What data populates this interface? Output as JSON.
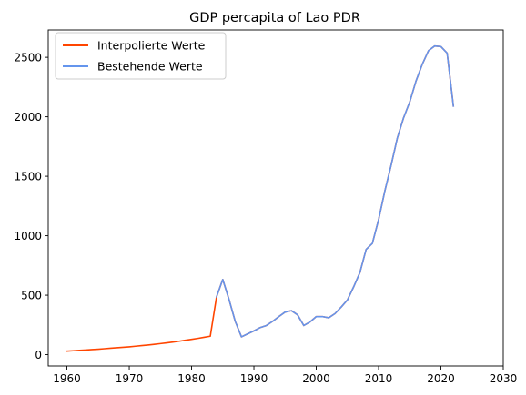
{
  "chart_data": {
    "type": "line",
    "title": "GDP percapita of Lao PDR",
    "xlabel": "",
    "ylabel": "",
    "xlim": [
      1957,
      2030
    ],
    "ylim": [
      -95,
      2730
    ],
    "xticks": [
      1960,
      1970,
      1980,
      1990,
      2000,
      2010,
      2020,
      2030
    ],
    "yticks": [
      0,
      500,
      1000,
      1500,
      2000,
      2500
    ],
    "grid": false,
    "legend_position": "top-left",
    "series": [
      {
        "name": "Interpolierte Werte",
        "color": "#ff4500",
        "x": [
          1960,
          1961,
          1962,
          1963,
          1964,
          1965,
          1966,
          1967,
          1968,
          1969,
          1970,
          1971,
          1972,
          1973,
          1974,
          1975,
          1976,
          1977,
          1978,
          1979,
          1980,
          1981,
          1982,
          1983,
          1984,
          1985,
          1986,
          1987,
          1988,
          1989,
          1990,
          1991,
          1992,
          1993,
          1994,
          1995,
          1996,
          1997,
          1998,
          1999,
          2000,
          2001,
          2002,
          2003,
          2004,
          2005,
          2006,
          2007,
          2008,
          2009,
          2010,
          2011,
          2012,
          2013,
          2014,
          2015,
          2016,
          2017,
          2018,
          2019,
          2020,
          2021,
          2022
        ],
        "values": [
          30,
          33,
          36,
          39,
          43,
          46,
          50,
          54,
          58,
          62,
          66,
          71,
          76,
          81,
          87,
          93,
          99,
          106,
          113,
          121,
          129,
          137,
          146,
          155,
          485,
          632,
          465,
          280,
          150,
          175,
          200,
          228,
          245,
          280,
          320,
          358,
          370,
          335,
          245,
          275,
          320,
          320,
          310,
          345,
          400,
          460,
          570,
          690,
          885,
          935,
          1135,
          1375,
          1590,
          1820,
          1990,
          2125,
          2300,
          2440,
          2555,
          2595,
          2590,
          2535,
          2090
        ]
      },
      {
        "name": "Bestehende Werte",
        "color": "#6495ed",
        "x": [
          1984,
          1985,
          1986,
          1987,
          1988,
          1989,
          1990,
          1991,
          1992,
          1993,
          1994,
          1995,
          1996,
          1997,
          1998,
          1999,
          2000,
          2001,
          2002,
          2003,
          2004,
          2005,
          2006,
          2007,
          2008,
          2009,
          2010,
          2011,
          2012,
          2013,
          2014,
          2015,
          2016,
          2017,
          2018,
          2019,
          2020,
          2021,
          2022
        ],
        "values": [
          485,
          632,
          465,
          280,
          150,
          175,
          200,
          228,
          245,
          280,
          320,
          358,
          370,
          335,
          245,
          275,
          320,
          320,
          310,
          345,
          400,
          460,
          570,
          690,
          885,
          935,
          1135,
          1375,
          1590,
          1820,
          1990,
          2125,
          2300,
          2440,
          2555,
          2595,
          2590,
          2535,
          2090
        ]
      }
    ]
  }
}
